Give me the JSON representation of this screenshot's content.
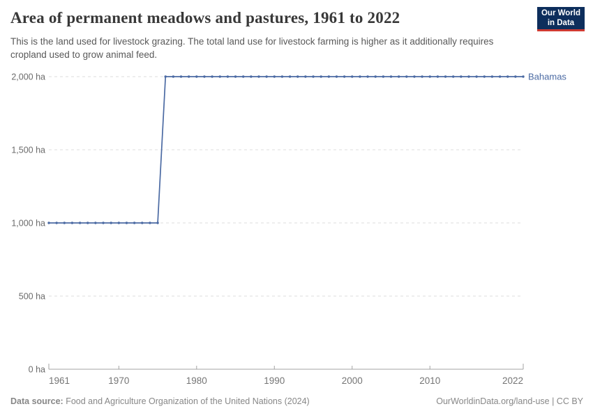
{
  "header": {
    "title": "Area of permanent meadows and pastures, 1961 to 2022",
    "subtitle": "This is the land used for livestock grazing. The total land use for livestock farming is higher as it additionally requires cropland used to grow animal feed.",
    "logo": {
      "line1": "Our World",
      "line2": "in Data"
    }
  },
  "chart_data": {
    "type": "line",
    "title": "Area of permanent meadows and pastures, 1961 to 2022",
    "xlabel": "",
    "ylabel": "",
    "xlim": [
      1961,
      2022
    ],
    "ylim": [
      0,
      2000
    ],
    "grid": "horizontal-dashed",
    "legend_position": "end-of-line",
    "x_ticks": [
      1961,
      1970,
      1980,
      1990,
      2000,
      2010,
      2022
    ],
    "x_tick_labels": [
      "1961",
      "1970",
      "1980",
      "1990",
      "2000",
      "2010",
      "2022"
    ],
    "y_ticks": [
      0,
      500,
      1000,
      1500,
      2000
    ],
    "y_tick_labels": [
      "0 ha",
      "500 ha",
      "1,000 ha",
      "1,500 ha",
      "2,000 ha"
    ],
    "series": [
      {
        "name": "Bahamas",
        "color": "#4b6aa3",
        "x": [
          1961,
          1962,
          1963,
          1964,
          1965,
          1966,
          1967,
          1968,
          1969,
          1970,
          1971,
          1972,
          1973,
          1974,
          1975,
          1976,
          1977,
          1978,
          1979,
          1980,
          1981,
          1982,
          1983,
          1984,
          1985,
          1986,
          1987,
          1988,
          1989,
          1990,
          1991,
          1992,
          1993,
          1994,
          1995,
          1996,
          1997,
          1998,
          1999,
          2000,
          2001,
          2002,
          2003,
          2004,
          2005,
          2006,
          2007,
          2008,
          2009,
          2010,
          2011,
          2012,
          2013,
          2014,
          2015,
          2016,
          2017,
          2018,
          2019,
          2020,
          2021,
          2022
        ],
        "y": [
          1000,
          1000,
          1000,
          1000,
          1000,
          1000,
          1000,
          1000,
          1000,
          1000,
          1000,
          1000,
          1000,
          1000,
          1000,
          2000,
          2000,
          2000,
          2000,
          2000,
          2000,
          2000,
          2000,
          2000,
          2000,
          2000,
          2000,
          2000,
          2000,
          2000,
          2000,
          2000,
          2000,
          2000,
          2000,
          2000,
          2000,
          2000,
          2000,
          2000,
          2000,
          2000,
          2000,
          2000,
          2000,
          2000,
          2000,
          2000,
          2000,
          2000,
          2000,
          2000,
          2000,
          2000,
          2000,
          2000,
          2000,
          2000,
          2000,
          2000,
          2000,
          2000
        ]
      }
    ]
  },
  "footer": {
    "source_label": "Data source:",
    "source_text": " Food and Agriculture Organization of the United Nations (2024)",
    "right_text": "OurWorldinData.org/land-use | CC BY"
  },
  "colors": {
    "series_blue": "#4b6aa3",
    "grid": "#dcdcdc",
    "axis": "#a3a3a3",
    "y_tick_text": "#6b6b6b",
    "x_tick_text": "#757575",
    "logo_bg": "#0d2e5c",
    "logo_accent": "#cf3a32"
  }
}
